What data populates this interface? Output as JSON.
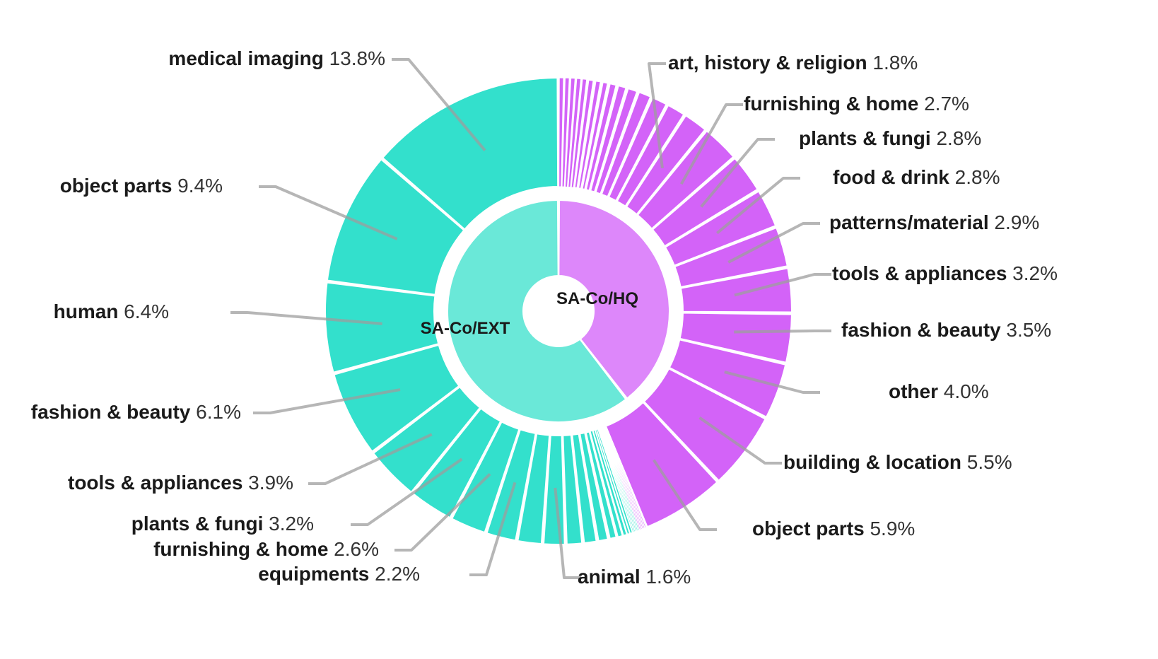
{
  "chart_data": {
    "type": "sunburst",
    "title": "",
    "colors": {
      "ext_outer": "#33E0CC",
      "ext_inner": "#6AE8D8",
      "hq_outer": "#D363F8",
      "hq_inner": "#DD87FA",
      "leader": "#9e9e9e"
    },
    "inner": [
      {
        "name": "SA-Co/HQ",
        "value": 39.5
      },
      {
        "name": "SA-Co/EXT",
        "value": 60.5
      }
    ],
    "outer": {
      "SA-Co/HQ": {
        "labeled": [
          {
            "name": "art, history & religion",
            "value": 1.8,
            "pct": "1.8%"
          },
          {
            "name": "furnishing & home",
            "value": 2.7,
            "pct": "2.7%"
          },
          {
            "name": "plants & fungi",
            "value": 2.8,
            "pct": "2.8%"
          },
          {
            "name": "food & drink",
            "value": 2.8,
            "pct": "2.8%"
          },
          {
            "name": "patterns/material",
            "value": 2.9,
            "pct": "2.9%"
          },
          {
            "name": "tools & appliances",
            "value": 3.2,
            "pct": "3.2%"
          },
          {
            "name": "fashion & beauty",
            "value": 3.5,
            "pct": "3.5%"
          },
          {
            "name": "other",
            "value": 4.0,
            "pct": "4.0%"
          },
          {
            "name": "building & location",
            "value": 5.5,
            "pct": "5.5%"
          },
          {
            "name": "object parts",
            "value": 5.9,
            "pct": "5.9%"
          }
        ],
        "small_leading": [
          0.4,
          0.4,
          0.4,
          0.4,
          0.4,
          0.5,
          0.5,
          0.5,
          0.6,
          0.7,
          0.8,
          1.0,
          1.2,
          1.4
        ],
        "small_trailing": [
          0.1,
          0.1,
          0.1,
          0.1,
          0.1
        ]
      },
      "SA-Co/EXT": {
        "labeled": [
          {
            "name": "animal",
            "value": 1.6,
            "pct": "1.6%"
          },
          {
            "name": "equipments",
            "value": 2.2,
            "pct": "2.2%"
          },
          {
            "name": "furnishing & home",
            "value": 2.6,
            "pct": "2.6%"
          },
          {
            "name": "plants & fungi",
            "value": 3.2,
            "pct": "3.2%"
          },
          {
            "name": "tools & appliances",
            "value": 3.9,
            "pct": "3.9%"
          },
          {
            "name": "fashion & beauty",
            "value": 6.1,
            "pct": "6.1%"
          },
          {
            "name": "human",
            "value": 6.4,
            "pct": "6.4%"
          },
          {
            "name": "object parts",
            "value": 9.4,
            "pct": "9.4%"
          },
          {
            "name": "medical imaging",
            "value": 13.8,
            "pct": "13.8%"
          }
        ],
        "small_leading": [
          0.1,
          0.1,
          0.1,
          0.1,
          0.1,
          0.2,
          0.2,
          0.3,
          0.4,
          0.6,
          0.8,
          1.0,
          1.2
        ],
        "small_between": [
          1.8
        ]
      }
    }
  }
}
